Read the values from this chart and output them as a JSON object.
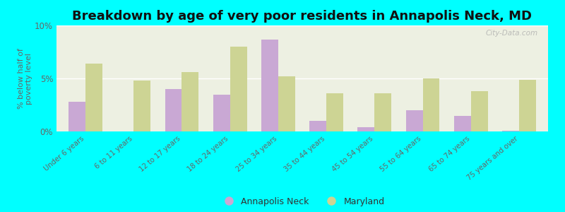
{
  "title": "Breakdown by age of very poor residents in Annapolis Neck, MD",
  "categories": [
    "Under 6 years",
    "6 to 11 years",
    "12 to 17 years",
    "18 to 24 years",
    "25 to 34 years",
    "35 to 44 years",
    "45 to 54 years",
    "55 to 64 years",
    "65 to 74 years",
    "75 years and over"
  ],
  "annapolis_neck": [
    2.8,
    0.0,
    4.0,
    3.5,
    8.7,
    1.0,
    0.4,
    2.0,
    1.5,
    0.05
  ],
  "maryland": [
    6.4,
    4.8,
    5.6,
    8.0,
    5.2,
    3.6,
    3.6,
    5.0,
    3.8,
    4.9
  ],
  "annapolis_color": "#c9a8d4",
  "maryland_color": "#cdd494",
  "background_outer": "#00ffff",
  "background_plot": "#edf0e2",
  "ylabel": "% below half of\npoverty level",
  "ylim": [
    0,
    10
  ],
  "yticks": [
    0,
    5,
    10
  ],
  "ytick_labels": [
    "0%",
    "5%",
    "10%"
  ],
  "legend_annapolis": "Annapolis Neck",
  "legend_maryland": "Maryland",
  "bar_width": 0.35,
  "title_fontsize": 13,
  "watermark": "City-Data.com"
}
